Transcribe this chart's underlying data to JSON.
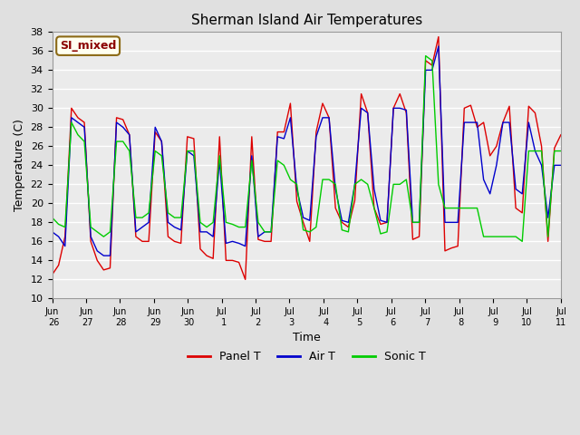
{
  "title": "Sherman Island Air Temperatures",
  "xlabel": "Time",
  "ylabel": "Temperature (C)",
  "ylim": [
    10,
    38
  ],
  "yticks": [
    10,
    12,
    14,
    16,
    18,
    20,
    22,
    24,
    26,
    28,
    30,
    32,
    34,
    36,
    38
  ],
  "fig_bg": "#e0e0e0",
  "plot_bg": "#ebebeb",
  "legend_label": "SI_mixed",
  "legend_bg": "#fffff0",
  "legend_border": "#8b6914",
  "legend_text_color": "#8b0000",
  "line_colors": {
    "Panel T": "#dd0000",
    "Air T": "#0000cc",
    "Sonic T": "#00cc00"
  },
  "xtick_labels": [
    "Jun\n26",
    "Jun\n27",
    "Jun\n28",
    "Jun\n29",
    "Jun\n30",
    "Jul\n 1",
    "Jul\n 2",
    "Jul\n 3",
    "Jul\n 4",
    "Jul\n 5",
    "Jul\n 6",
    "Jul\n 7",
    "Jul\n 8",
    "Jul\n 9",
    "Jul\n10",
    "Jul\n11"
  ],
  "xtick_positions": [
    0,
    1,
    2,
    3,
    4,
    5,
    6,
    7,
    8,
    9,
    10,
    11,
    12,
    13,
    14,
    15
  ],
  "panel_t": [
    12.5,
    13.5,
    16.5,
    30.0,
    29.0,
    28.5,
    16.0,
    14.0,
    13.0,
    13.2,
    29.0,
    28.8,
    27.2,
    16.5,
    16.0,
    16.0,
    27.5,
    26.5,
    16.5,
    16.0,
    15.8,
    27.0,
    26.8,
    15.2,
    14.5,
    14.2,
    27.0,
    14.0,
    14.0,
    13.8,
    12.0,
    27.0,
    16.2,
    16.0,
    16.0,
    27.5,
    27.5,
    30.5,
    20.2,
    18.0,
    16.0,
    27.5,
    30.5,
    29.0,
    19.5,
    18.0,
    17.5,
    20.3,
    31.5,
    29.5,
    19.5,
    17.8,
    18.0,
    30.0,
    31.5,
    29.5,
    16.2,
    16.5,
    35.0,
    34.5,
    37.5,
    15.0,
    15.3,
    15.5,
    30.0,
    30.3,
    28.0,
    28.5,
    25.0,
    26.0,
    28.5,
    30.2,
    19.5,
    19.0,
    30.2,
    29.5,
    26.0,
    16.0,
    25.8,
    27.2
  ],
  "air_t": [
    17.0,
    16.5,
    15.5,
    29.0,
    28.5,
    28.0,
    16.5,
    15.0,
    14.5,
    14.5,
    28.5,
    28.0,
    27.2,
    17.0,
    17.5,
    18.0,
    28.0,
    26.5,
    18.0,
    17.5,
    17.2,
    25.5,
    25.0,
    17.0,
    17.0,
    16.5,
    24.5,
    15.8,
    16.0,
    15.8,
    15.5,
    25.0,
    16.5,
    17.0,
    17.0,
    27.0,
    26.8,
    29.0,
    21.5,
    18.5,
    18.2,
    27.0,
    29.0,
    29.0,
    21.5,
    18.2,
    18.0,
    22.0,
    30.0,
    29.5,
    21.5,
    18.2,
    18.0,
    30.0,
    30.0,
    29.8,
    18.0,
    18.0,
    34.0,
    34.0,
    36.5,
    18.0,
    18.0,
    18.0,
    28.5,
    28.5,
    28.5,
    22.5,
    21.0,
    24.0,
    28.5,
    28.5,
    21.5,
    21.0,
    28.5,
    25.5,
    24.0,
    18.5,
    24.0,
    24.0
  ],
  "sonic_t": [
    18.5,
    17.8,
    17.5,
    28.5,
    27.2,
    26.5,
    17.5,
    17.0,
    16.5,
    17.0,
    26.5,
    26.5,
    25.5,
    18.5,
    18.5,
    19.0,
    25.5,
    25.0,
    19.0,
    18.5,
    18.5,
    25.5,
    25.5,
    18.0,
    17.5,
    18.0,
    25.0,
    18.0,
    17.8,
    17.5,
    17.5,
    24.5,
    18.0,
    17.0,
    17.0,
    24.5,
    24.0,
    22.5,
    22.0,
    17.2,
    17.0,
    17.5,
    22.5,
    22.5,
    22.0,
    17.2,
    17.0,
    22.0,
    22.5,
    22.0,
    19.5,
    16.8,
    17.0,
    22.0,
    22.0,
    22.5,
    18.0,
    18.0,
    35.5,
    35.0,
    22.0,
    19.5,
    19.5,
    19.5,
    19.5,
    19.5,
    19.5,
    16.5,
    16.5,
    16.5,
    16.5,
    16.5,
    16.5,
    16.0,
    25.5,
    25.5,
    25.5,
    16.5,
    25.5,
    25.5
  ]
}
